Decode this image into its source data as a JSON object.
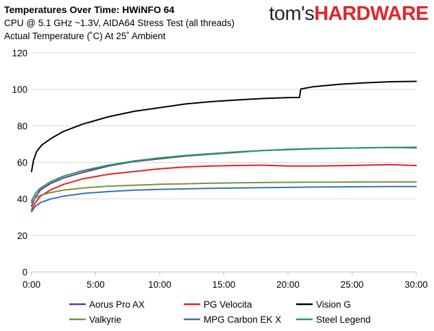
{
  "header": {
    "title": "Temperatures Over Time: HWiNFO 64",
    "subtitle_1": "CPU @ 5.1 GHz ~1.3V, AIDA64 Stress Test (all threads)",
    "subtitle_2": "Actual Temperature (˚C) At 25˚ Ambient"
  },
  "brand": {
    "part1": "tom's",
    "part2": "HARDWARE",
    "accent": "#e0262a"
  },
  "chart_data": {
    "type": "line",
    "title": "Temperatures Over Time: HWiNFO 64",
    "xlabel": "",
    "ylabel": "",
    "xlim": [
      0,
      30
    ],
    "ylim": [
      0,
      120
    ],
    "x_ticks": [
      0,
      5,
      10,
      15,
      20,
      25,
      30
    ],
    "x_tick_labels": [
      "0:00",
      "5:00",
      "10:00",
      "15:00",
      "20:00",
      "25:00",
      "30:00"
    ],
    "y_ticks": [
      0,
      20,
      40,
      60,
      80,
      100,
      120
    ],
    "y_tick_labels": [
      "0",
      "20",
      "40",
      "60",
      "80",
      "100",
      "120"
    ],
    "grid": "horizontal",
    "legend_position": "bottom",
    "series": [
      {
        "name": "Aorus Pro AX",
        "color": "#7030a0",
        "x": [
          0,
          0.3,
          0.7,
          1.5,
          2.5,
          4,
          6,
          8,
          10,
          12,
          14,
          16,
          18,
          20,
          22,
          24,
          26,
          28,
          30
        ],
        "y": [
          36,
          41,
          45,
          48.5,
          51.5,
          54.5,
          58,
          60.5,
          62,
          63.5,
          64.5,
          65.5,
          66.5,
          67,
          67.5,
          67.8,
          68,
          68.2,
          68
        ]
      },
      {
        "name": "PG Velocita",
        "color": "#ee1c1c",
        "x": [
          0,
          0.3,
          0.7,
          1.5,
          2.5,
          4,
          6,
          8,
          10,
          12,
          14,
          16,
          18,
          20,
          22,
          24,
          26,
          28,
          30
        ],
        "y": [
          34,
          38,
          41.5,
          45,
          48,
          51,
          53.5,
          55,
          56.5,
          57.5,
          58,
          58.3,
          58.5,
          58,
          58,
          58.2,
          58.5,
          58.8,
          58.3
        ]
      },
      {
        "name": "Vision G",
        "color": "#000000",
        "x": [
          0,
          0.15,
          0.4,
          0.8,
          1.5,
          2.5,
          4,
          6,
          8,
          10,
          12,
          14,
          16,
          18,
          20,
          20.9,
          21,
          22,
          24,
          26,
          28,
          30
        ],
        "y": [
          55,
          61,
          66,
          69.5,
          73,
          77,
          81,
          85,
          88,
          90,
          92,
          93.3,
          94.2,
          95,
          95.5,
          95.6,
          100.2,
          101.5,
          102.8,
          103.6,
          104.2,
          104.4
        ]
      },
      {
        "name": "Valkyrie",
        "color": "#77933c",
        "x": [
          0,
          0.3,
          0.7,
          1.5,
          2.5,
          4,
          6,
          8,
          10,
          12,
          14,
          16,
          18,
          20,
          22,
          24,
          26,
          28,
          30
        ],
        "y": [
          38,
          40.5,
          42,
          43.5,
          44.8,
          46,
          47,
          47.5,
          48,
          48.3,
          48.6,
          48.8,
          49,
          49.1,
          49.2,
          49.2,
          49.3,
          49.3,
          49.3
        ]
      },
      {
        "name": "MPG Carbon EK X",
        "color": "#2e75b6",
        "x": [
          0,
          0.3,
          0.7,
          1.5,
          2.5,
          4,
          6,
          8,
          10,
          12,
          14,
          16,
          18,
          20,
          22,
          24,
          26,
          28,
          30
        ],
        "y": [
          33,
          36,
          38,
          40,
          41.5,
          43,
          44,
          44.8,
          45.2,
          45.5,
          45.8,
          46,
          46.2,
          46.3,
          46.5,
          46.6,
          46.7,
          46.8,
          46.8
        ]
      },
      {
        "name": "Steel Legend",
        "color": "#1fa35a",
        "x": [
          0,
          0.3,
          0.7,
          1.5,
          2.5,
          4,
          6,
          8,
          10,
          12,
          14,
          16,
          18,
          20,
          22,
          24,
          26,
          28,
          30
        ],
        "y": [
          39,
          43,
          46,
          49.5,
          52.5,
          55.5,
          58.5,
          60.8,
          62.5,
          63.8,
          64.8,
          65.8,
          66.5,
          67.2,
          67.6,
          67.8,
          68,
          68.2,
          68.3
        ]
      }
    ]
  }
}
